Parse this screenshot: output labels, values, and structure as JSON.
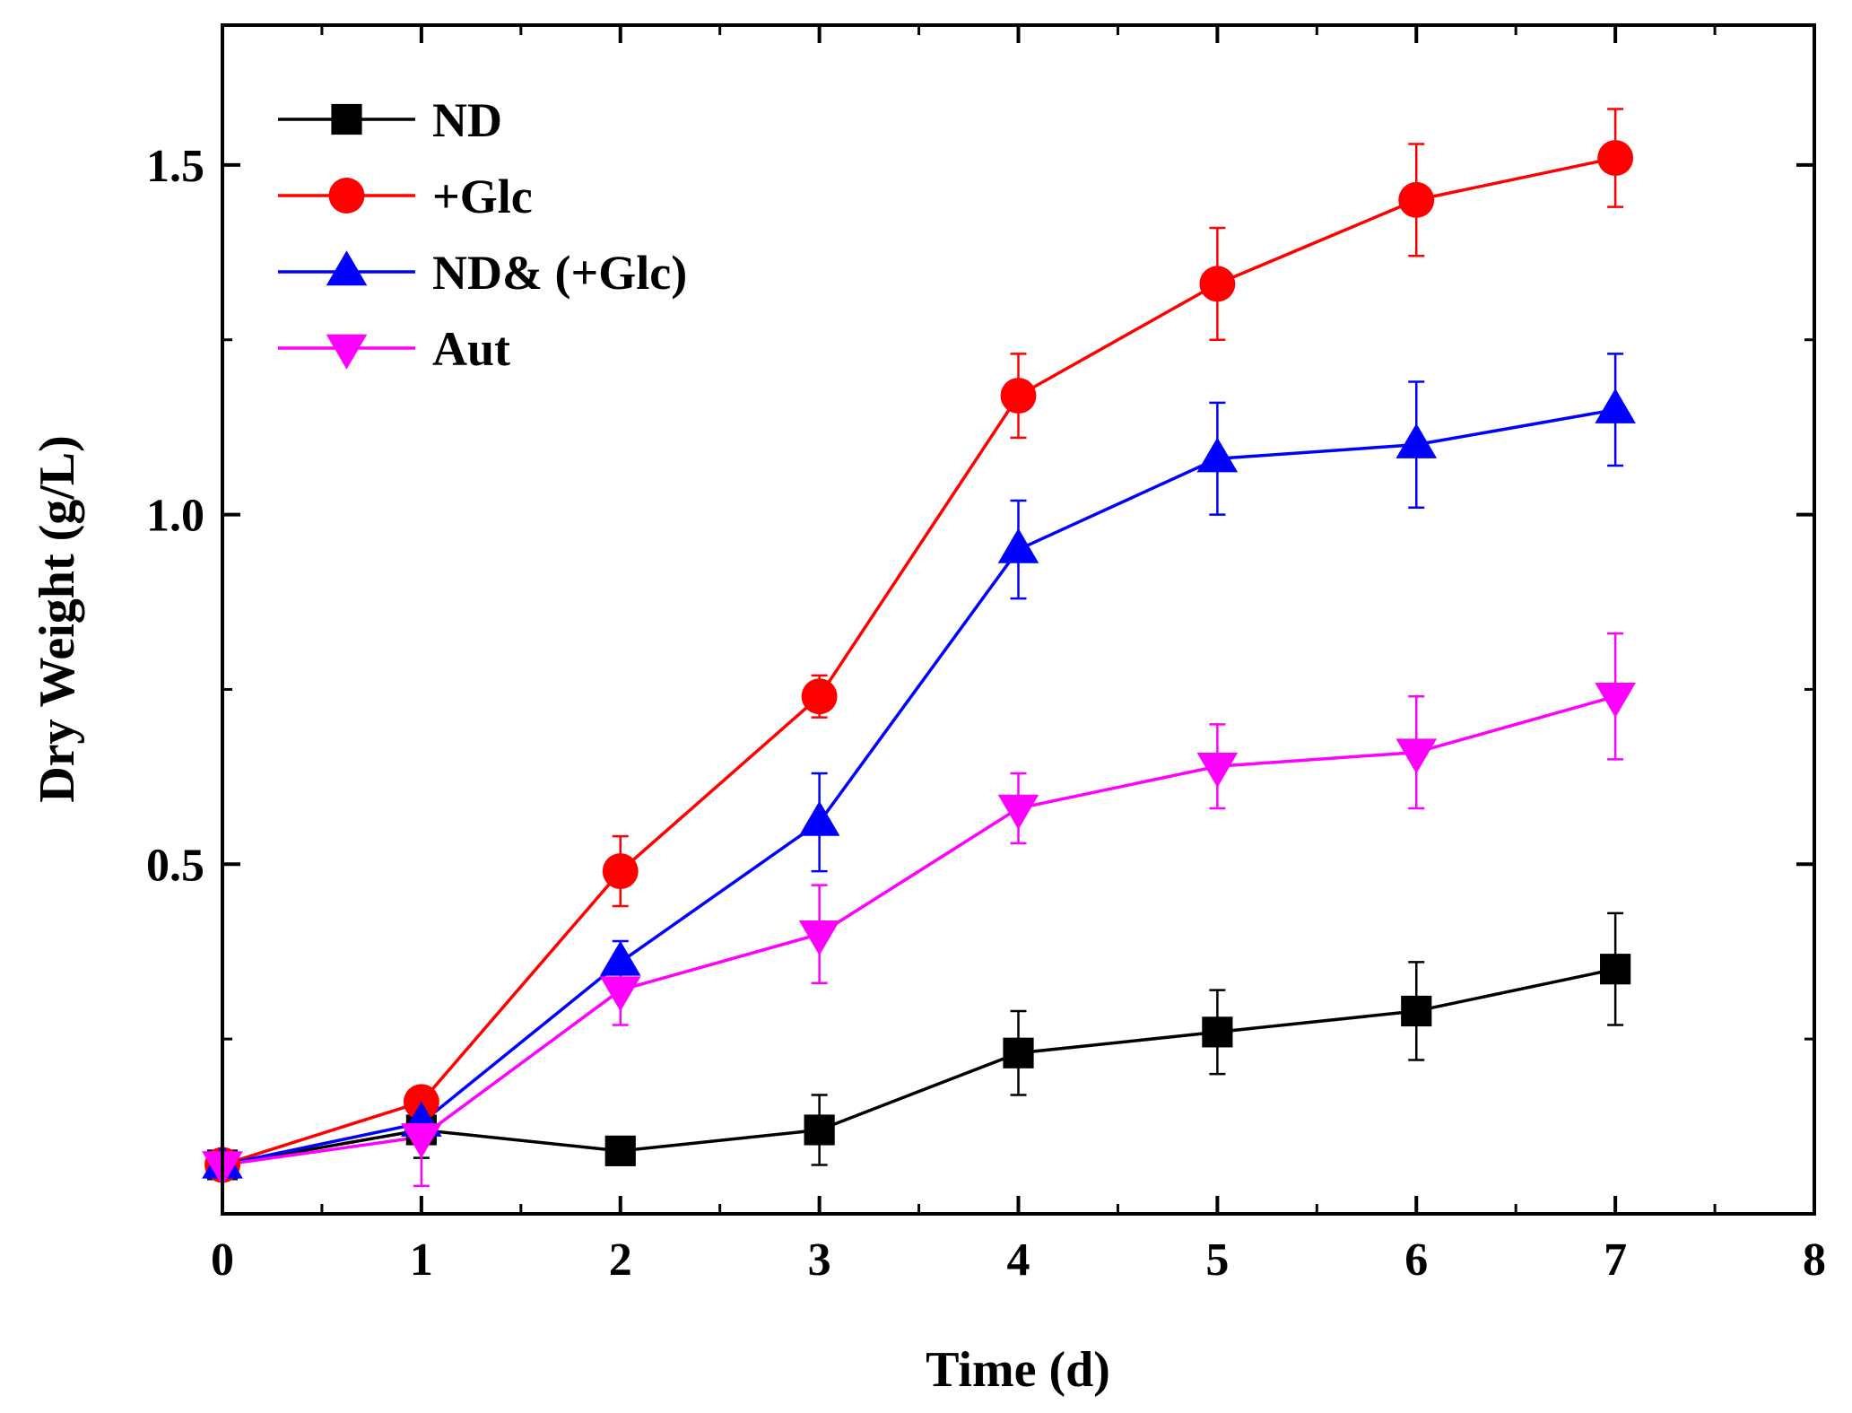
{
  "chart_data": {
    "type": "line",
    "title": "",
    "xlabel": "Time (d)",
    "ylabel": "Dry Weight (g/L)",
    "xlim": [
      0,
      8
    ],
    "ylim": [
      0.0,
      1.7
    ],
    "x_ticks": [
      0,
      1,
      2,
      3,
      4,
      5,
      6,
      7,
      8
    ],
    "x_tick_labels": [
      "0",
      "1",
      "2",
      "3",
      "4",
      "5",
      "6",
      "7",
      "8"
    ],
    "y_ticks": [
      0.5,
      1.0,
      1.5
    ],
    "y_tick_labels": [
      "0.5",
      "1.0",
      "1.5"
    ],
    "grid": false,
    "legend_position": "top-left",
    "x": [
      0,
      1,
      2,
      3,
      4,
      5,
      6,
      7
    ],
    "series": [
      {
        "name": "ND",
        "color": "#000000",
        "marker": "square",
        "values": [
          0.07,
          0.12,
          0.09,
          0.12,
          0.23,
          0.26,
          0.29,
          0.35
        ],
        "errors": [
          0.01,
          0.04,
          0.01,
          0.05,
          0.06,
          0.06,
          0.07,
          0.08
        ]
      },
      {
        "name": "+Glc",
        "color": "#ff0000",
        "marker": "circle",
        "values": [
          0.07,
          0.16,
          0.49,
          0.74,
          1.17,
          1.33,
          1.45,
          1.51
        ],
        "errors": [
          0.01,
          0.02,
          0.05,
          0.03,
          0.06,
          0.08,
          0.08,
          0.07
        ]
      },
      {
        "name": "ND& (+Glc)",
        "color": "#0000ff",
        "marker": "triangle-up",
        "values": [
          0.07,
          0.13,
          0.36,
          0.56,
          0.95,
          1.08,
          1.1,
          1.15
        ],
        "errors": [
          0.01,
          0.03,
          0.03,
          0.07,
          0.07,
          0.08,
          0.09,
          0.08
        ]
      },
      {
        "name": "Aut",
        "color": "#ff00ff",
        "marker": "triangle-down",
        "values": [
          0.07,
          0.11,
          0.32,
          0.4,
          0.58,
          0.64,
          0.66,
          0.74
        ],
        "errors": [
          0.01,
          0.07,
          0.05,
          0.07,
          0.05,
          0.06,
          0.08,
          0.09
        ]
      }
    ]
  }
}
